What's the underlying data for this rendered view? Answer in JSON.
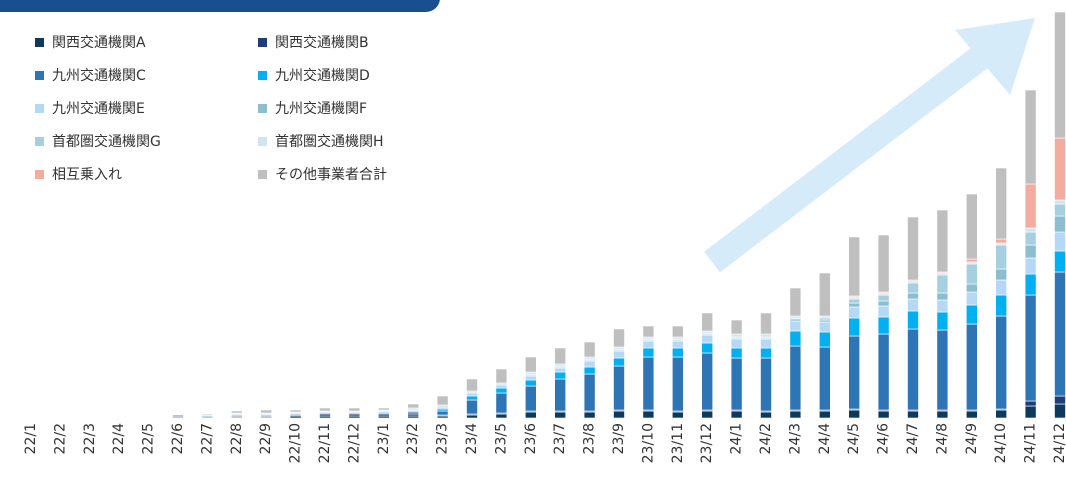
{
  "chart_data": {
    "type": "stacked_bar",
    "categories": [
      "22/1",
      "22/2",
      "22/3",
      "22/4",
      "22/5",
      "22/6",
      "22/7",
      "22/8",
      "22/9",
      "22/10",
      "22/11",
      "22/12",
      "23/1",
      "23/2",
      "23/3",
      "23/4",
      "23/5",
      "23/6",
      "23/7",
      "23/8",
      "23/9",
      "23/10",
      "23/11",
      "23/12",
      "24/1",
      "24/2",
      "24/3",
      "24/4",
      "24/5",
      "24/6",
      "24/7",
      "24/8",
      "24/9",
      "24/10",
      "24/11",
      "24/12"
    ],
    "series": [
      {
        "name": "関西交通機関A",
        "color": "#0d3a5c",
        "values": [
          0,
          0,
          0,
          0,
          0,
          1,
          1,
          1,
          1,
          2,
          2,
          2,
          2,
          2,
          2,
          3,
          4,
          6,
          6,
          6,
          7,
          7,
          6,
          7,
          7,
          6,
          7,
          7,
          8,
          7,
          7,
          7,
          7,
          8,
          12,
          14
        ]
      },
      {
        "name": "関西交通機関B",
        "color": "#1f3d7a",
        "values": [
          0,
          0,
          0,
          0,
          0,
          1,
          0,
          1,
          1,
          1,
          2,
          2,
          2,
          2,
          1,
          1,
          1,
          1,
          1,
          1,
          1,
          1,
          1,
          1,
          1,
          1,
          1,
          1,
          1,
          1,
          1,
          1,
          1,
          1,
          5,
          8
        ]
      },
      {
        "name": "九州交通機関C",
        "color": "#2e75b6",
        "values": [
          0,
          0,
          0,
          0,
          0,
          1,
          1,
          1,
          1,
          1,
          1,
          1,
          1,
          2,
          4,
          14,
          20,
          25,
          32,
          37,
          44,
          53,
          54,
          57,
          52,
          53,
          64,
          63,
          73,
          76,
          81,
          80,
          86,
          93,
          106,
          124
        ]
      },
      {
        "name": "九州交通機関D",
        "color": "#00b0f0",
        "values": [
          0,
          0,
          0,
          0,
          0,
          0,
          0,
          0,
          0,
          0,
          0,
          0,
          1,
          1,
          2,
          4,
          5,
          6,
          7,
          7,
          8,
          9,
          9,
          10,
          10,
          10,
          15,
          15,
          18,
          17,
          18,
          18,
          19,
          21,
          21,
          21
        ]
      },
      {
        "name": "九州交通機関E",
        "color": "#b4d8f5",
        "values": [
          0,
          0,
          0,
          0,
          0,
          0,
          1,
          1,
          1,
          1,
          1,
          1,
          1,
          1,
          2,
          3,
          3,
          4,
          4,
          6,
          7,
          7,
          7,
          8,
          9,
          9,
          10,
          10,
          11,
          11,
          12,
          12,
          13,
          15,
          16,
          19
        ]
      },
      {
        "name": "九州交通機関F",
        "color": "#8bbfcf",
        "values": [
          0,
          0,
          0,
          0,
          0,
          0,
          0,
          0,
          0,
          0,
          0,
          0,
          0,
          0,
          0,
          0,
          0,
          1,
          1,
          1,
          1,
          1,
          1,
          1,
          1,
          1,
          2,
          2,
          4,
          5,
          6,
          7,
          8,
          11,
          13,
          16
        ]
      },
      {
        "name": "首都圏交通機関G",
        "color": "#a6cfe0",
        "values": [
          0,
          0,
          0,
          0,
          0,
          0,
          0,
          0,
          0,
          0,
          0,
          0,
          0,
          0,
          0,
          0,
          0,
          1,
          1,
          1,
          1,
          1,
          1,
          1,
          1,
          1,
          1,
          2,
          4,
          6,
          10,
          18,
          20,
          24,
          13,
          12
        ]
      },
      {
        "name": "首都圏交通機関H",
        "color": "#cfe6f0",
        "values": [
          0,
          0,
          0,
          0,
          0,
          0,
          0,
          1,
          1,
          1,
          1,
          1,
          1,
          2,
          2,
          2,
          2,
          2,
          2,
          2,
          2,
          2,
          2,
          2,
          3,
          3,
          2,
          2,
          2,
          2,
          2,
          2,
          2,
          2,
          4,
          4
        ]
      },
      {
        "name": "相互乗入れ",
        "color": "#f4aba0",
        "values": [
          0,
          0,
          0,
          0,
          0,
          0,
          0,
          0,
          0,
          0,
          0,
          0,
          0,
          0,
          0,
          0,
          0,
          0,
          0,
          0,
          0,
          0,
          0,
          0,
          0,
          0,
          0,
          0,
          1,
          1,
          1,
          1,
          3,
          4,
          44,
          62
        ]
      },
      {
        "name": "その他事業者合計",
        "color": "#bfbfbf",
        "values": [
          0,
          0,
          0,
          0,
          0,
          0,
          1,
          2,
          3,
          2,
          3,
          3,
          2,
          4,
          9,
          12,
          14,
          15,
          16,
          15,
          18,
          11,
          11,
          18,
          14,
          21,
          28,
          43,
          59,
          57,
          63,
          62,
          65,
          71,
          94,
          126
        ]
      }
    ]
  }
}
